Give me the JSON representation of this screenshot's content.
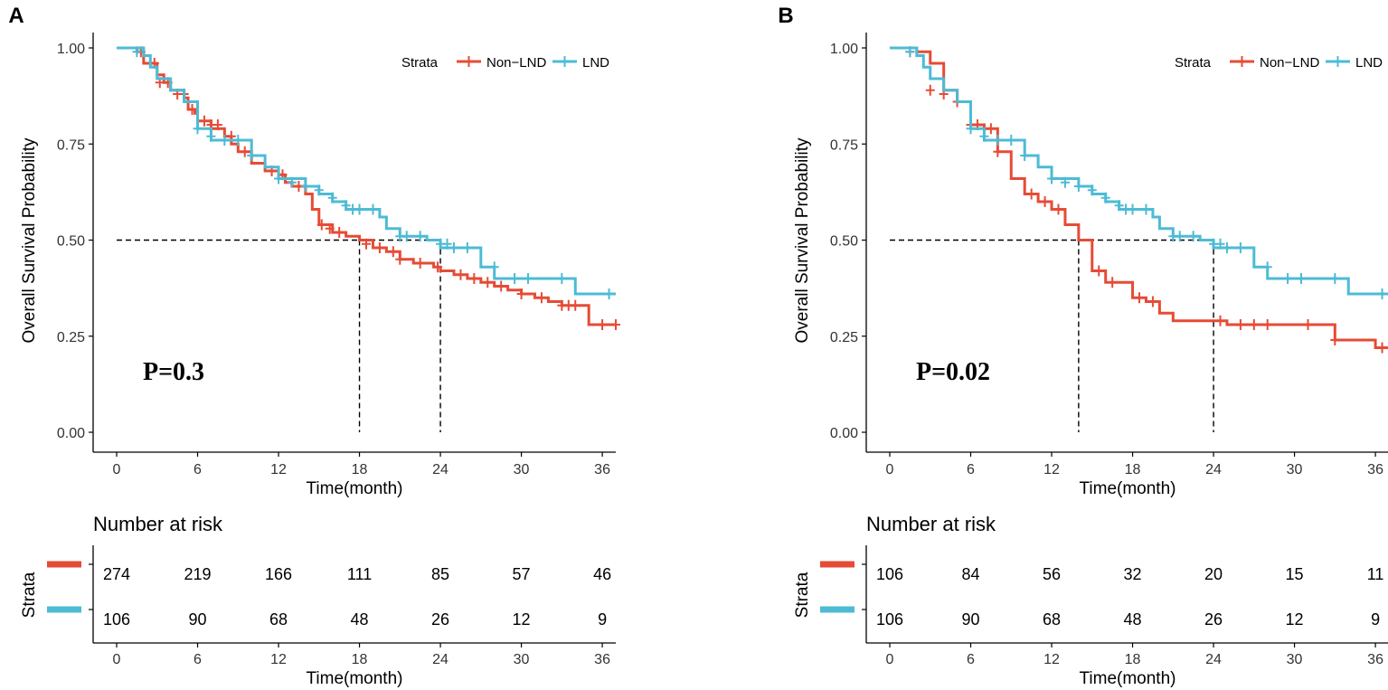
{
  "chart_data": [
    {
      "type": "line",
      "subtype": "kaplan-meier",
      "panel_label": "A",
      "ylabel": "Overall Survival Probability",
      "xlabel": "Time(month)",
      "xlim": [
        0,
        37
      ],
      "ylim": [
        0,
        1
      ],
      "xticks": [
        0,
        6,
        12,
        18,
        24,
        30,
        36
      ],
      "xtick_labels": [
        "0",
        "6",
        "12",
        "18",
        "24",
        "30",
        "36"
      ],
      "yticks": [
        0,
        0.25,
        0.5,
        0.75,
        1.0
      ],
      "ytick_labels": [
        "0.00",
        "0.25",
        "0.50",
        "0.75",
        "1.00"
      ],
      "legend": {
        "title": "Strata",
        "position": "top-right",
        "entries": [
          "Non−LND",
          "LND"
        ]
      },
      "p_value": "P=0.3",
      "median_line": {
        "y": 0.5,
        "x_ends": [
          18,
          24
        ]
      },
      "series": [
        {
          "name": "Non-LND",
          "color": "#E64B35",
          "steps": [
            [
              0,
              1.0
            ],
            [
              1.5,
              0.99
            ],
            [
              2.0,
              0.96
            ],
            [
              3.0,
              0.93
            ],
            [
              3.5,
              0.91
            ],
            [
              4.0,
              0.89
            ],
            [
              5.0,
              0.87
            ],
            [
              5.3,
              0.84
            ],
            [
              5.8,
              0.83
            ],
            [
              6.0,
              0.81
            ],
            [
              7.0,
              0.79
            ],
            [
              8.0,
              0.77
            ],
            [
              8.5,
              0.75
            ],
            [
              9.0,
              0.73
            ],
            [
              10.0,
              0.7
            ],
            [
              11.0,
              0.68
            ],
            [
              12.0,
              0.67
            ],
            [
              12.5,
              0.65
            ],
            [
              13.0,
              0.64
            ],
            [
              14.0,
              0.62
            ],
            [
              14.5,
              0.58
            ],
            [
              15.0,
              0.54
            ],
            [
              16.0,
              0.52
            ],
            [
              17.0,
              0.51
            ],
            [
              18.0,
              0.5
            ],
            [
              19.0,
              0.48
            ],
            [
              20.0,
              0.47
            ],
            [
              21.0,
              0.45
            ],
            [
              22.0,
              0.44
            ],
            [
              23.5,
              0.43
            ],
            [
              24.0,
              0.42
            ],
            [
              25.0,
              0.41
            ],
            [
              26.0,
              0.4
            ],
            [
              27.0,
              0.39
            ],
            [
              28.0,
              0.38
            ],
            [
              29.0,
              0.37
            ],
            [
              30.0,
              0.36
            ],
            [
              31.0,
              0.35
            ],
            [
              32.0,
              0.34
            ],
            [
              33.0,
              0.33
            ],
            [
              35.0,
              0.28
            ],
            [
              37.0,
              0.28
            ]
          ],
          "censors": [
            [
              1.8,
              0.99
            ],
            [
              2.8,
              0.96
            ],
            [
              3.2,
              0.91
            ],
            [
              3.8,
              0.91
            ],
            [
              4.5,
              0.88
            ],
            [
              5.0,
              0.88
            ],
            [
              5.6,
              0.84
            ],
            [
              6.5,
              0.81
            ],
            [
              7.0,
              0.8
            ],
            [
              7.5,
              0.8
            ],
            [
              8.5,
              0.77
            ],
            [
              9.5,
              0.73
            ],
            [
              11.5,
              0.68
            ],
            [
              12.3,
              0.67
            ],
            [
              13.5,
              0.64
            ],
            [
              15.2,
              0.54
            ],
            [
              15.8,
              0.53
            ],
            [
              16.5,
              0.52
            ],
            [
              18.5,
              0.49
            ],
            [
              19.5,
              0.48
            ],
            [
              20.5,
              0.47
            ],
            [
              21.0,
              0.45
            ],
            [
              22.5,
              0.44
            ],
            [
              23.8,
              0.43
            ],
            [
              25.5,
              0.41
            ],
            [
              26.5,
              0.4
            ],
            [
              27.5,
              0.39
            ],
            [
              28.5,
              0.38
            ],
            [
              30.0,
              0.36
            ],
            [
              31.5,
              0.35
            ],
            [
              33.0,
              0.33
            ],
            [
              33.5,
              0.33
            ],
            [
              34.0,
              0.33
            ],
            [
              36.0,
              0.28
            ],
            [
              37.0,
              0.28
            ]
          ]
        },
        {
          "name": "LND",
          "color": "#4DBBD5",
          "steps": [
            [
              0,
              1.0
            ],
            [
              2.0,
              0.98
            ],
            [
              2.5,
              0.95
            ],
            [
              3.0,
              0.92
            ],
            [
              4.0,
              0.89
            ],
            [
              5.0,
              0.86
            ],
            [
              6.0,
              0.79
            ],
            [
              7.0,
              0.76
            ],
            [
              9.0,
              0.76
            ],
            [
              10.0,
              0.72
            ],
            [
              11.0,
              0.69
            ],
            [
              12.0,
              0.66
            ],
            [
              14.0,
              0.64
            ],
            [
              15.0,
              0.62
            ],
            [
              16.0,
              0.6
            ],
            [
              17.0,
              0.58
            ],
            [
              19.5,
              0.56
            ],
            [
              20.0,
              0.53
            ],
            [
              21.0,
              0.51
            ],
            [
              23.0,
              0.5
            ],
            [
              24.0,
              0.48
            ],
            [
              27.0,
              0.43
            ],
            [
              28.0,
              0.4
            ],
            [
              31.0,
              0.4
            ],
            [
              34.0,
              0.36
            ],
            [
              37.0,
              0.36
            ]
          ],
          "censors": [
            [
              1.5,
              0.99
            ],
            [
              6.0,
              0.79
            ],
            [
              7.0,
              0.77
            ],
            [
              8.0,
              0.76
            ],
            [
              9.0,
              0.76
            ],
            [
              10.0,
              0.72
            ],
            [
              12.0,
              0.66
            ],
            [
              13.0,
              0.65
            ],
            [
              14.0,
              0.64
            ],
            [
              15.0,
              0.63
            ],
            [
              16.0,
              0.61
            ],
            [
              17.0,
              0.59
            ],
            [
              17.5,
              0.58
            ],
            [
              18.0,
              0.58
            ],
            [
              19.0,
              0.58
            ],
            [
              21.0,
              0.51
            ],
            [
              21.5,
              0.51
            ],
            [
              22.5,
              0.51
            ],
            [
              24.0,
              0.49
            ],
            [
              24.5,
              0.49
            ],
            [
              25.0,
              0.48
            ],
            [
              26.0,
              0.48
            ],
            [
              28.0,
              0.43
            ],
            [
              29.5,
              0.4
            ],
            [
              30.5,
              0.4
            ],
            [
              33.0,
              0.4
            ],
            [
              36.5,
              0.36
            ]
          ]
        }
      ],
      "risk_table": {
        "title": "Number at risk",
        "ylabel": "Strata",
        "xlabel": "Time(month)",
        "times": [
          0,
          6,
          12,
          18,
          24,
          30,
          36
        ],
        "rows": [
          {
            "color": "#E64B35",
            "values": [
              "274",
              "219",
              "166",
              "111",
              "85",
              "57",
              "46"
            ]
          },
          {
            "color": "#4DBBD5",
            "values": [
              "106",
              "90",
              "68",
              "48",
              "26",
              "12",
              "9"
            ]
          }
        ]
      }
    },
    {
      "type": "line",
      "subtype": "kaplan-meier",
      "panel_label": "B",
      "ylabel": "Overall Survival Probability",
      "xlabel": "Time(month)",
      "xlim": [
        0,
        37
      ],
      "ylim": [
        0,
        1
      ],
      "xticks": [
        0,
        6,
        12,
        18,
        24,
        30,
        36
      ],
      "xtick_labels": [
        "0",
        "6",
        "12",
        "18",
        "24",
        "30",
        "36"
      ],
      "yticks": [
        0,
        0.25,
        0.5,
        0.75,
        1.0
      ],
      "ytick_labels": [
        "0.00",
        "0.25",
        "0.50",
        "0.75",
        "1.00"
      ],
      "legend": {
        "title": "Strata",
        "position": "top-right",
        "entries": [
          "Non−LND",
          "LND"
        ]
      },
      "p_value": "P=0.02",
      "median_line": {
        "y": 0.5,
        "x_ends": [
          14,
          24
        ]
      },
      "series": [
        {
          "name": "Non-LND",
          "color": "#E64B35",
          "steps": [
            [
              0,
              1.0
            ],
            [
              2.0,
              0.99
            ],
            [
              3.0,
              0.96
            ],
            [
              4.0,
              0.89
            ],
            [
              5.0,
              0.86
            ],
            [
              6.0,
              0.8
            ],
            [
              7.0,
              0.79
            ],
            [
              8.0,
              0.73
            ],
            [
              9.0,
              0.66
            ],
            [
              10.0,
              0.62
            ],
            [
              11.0,
              0.6
            ],
            [
              12.0,
              0.58
            ],
            [
              13.0,
              0.54
            ],
            [
              14.0,
              0.5
            ],
            [
              15.0,
              0.42
            ],
            [
              16.0,
              0.39
            ],
            [
              18.0,
              0.35
            ],
            [
              19.0,
              0.34
            ],
            [
              20.0,
              0.31
            ],
            [
              21.0,
              0.29
            ],
            [
              24.0,
              0.29
            ],
            [
              25.0,
              0.28
            ],
            [
              27.0,
              0.28
            ],
            [
              30.0,
              0.28
            ],
            [
              33.0,
              0.24
            ],
            [
              36.0,
              0.22
            ],
            [
              37.0,
              0.22
            ]
          ],
          "censors": [
            [
              1.5,
              0.99
            ],
            [
              3.0,
              0.89
            ],
            [
              4.0,
              0.88
            ],
            [
              5.0,
              0.86
            ],
            [
              6.0,
              0.8
            ],
            [
              6.5,
              0.8
            ],
            [
              7.5,
              0.79
            ],
            [
              8.0,
              0.73
            ],
            [
              10.5,
              0.62
            ],
            [
              11.5,
              0.6
            ],
            [
              12.5,
              0.58
            ],
            [
              15.5,
              0.42
            ],
            [
              16.5,
              0.39
            ],
            [
              18.5,
              0.35
            ],
            [
              19.5,
              0.34
            ],
            [
              24.5,
              0.29
            ],
            [
              26.0,
              0.28
            ],
            [
              27.0,
              0.28
            ],
            [
              28.0,
              0.28
            ],
            [
              31.0,
              0.28
            ],
            [
              33.0,
              0.24
            ],
            [
              36.5,
              0.22
            ]
          ]
        },
        {
          "name": "LND",
          "color": "#4DBBD5",
          "steps": [
            [
              0,
              1.0
            ],
            [
              2.0,
              0.98
            ],
            [
              2.5,
              0.95
            ],
            [
              3.0,
              0.92
            ],
            [
              4.0,
              0.89
            ],
            [
              5.0,
              0.86
            ],
            [
              6.0,
              0.79
            ],
            [
              7.0,
              0.76
            ],
            [
              9.0,
              0.76
            ],
            [
              10.0,
              0.72
            ],
            [
              11.0,
              0.69
            ],
            [
              12.0,
              0.66
            ],
            [
              14.0,
              0.64
            ],
            [
              15.0,
              0.62
            ],
            [
              16.0,
              0.6
            ],
            [
              17.0,
              0.58
            ],
            [
              19.5,
              0.56
            ],
            [
              20.0,
              0.53
            ],
            [
              21.0,
              0.51
            ],
            [
              23.0,
              0.5
            ],
            [
              24.0,
              0.48
            ],
            [
              27.0,
              0.43
            ],
            [
              28.0,
              0.4
            ],
            [
              31.0,
              0.4
            ],
            [
              34.0,
              0.36
            ],
            [
              37.0,
              0.36
            ]
          ],
          "censors": [
            [
              1.5,
              0.99
            ],
            [
              6.0,
              0.79
            ],
            [
              7.0,
              0.77
            ],
            [
              8.0,
              0.76
            ],
            [
              9.0,
              0.76
            ],
            [
              10.0,
              0.72
            ],
            [
              12.0,
              0.66
            ],
            [
              13.0,
              0.65
            ],
            [
              14.0,
              0.64
            ],
            [
              15.0,
              0.63
            ],
            [
              16.0,
              0.61
            ],
            [
              17.0,
              0.59
            ],
            [
              17.5,
              0.58
            ],
            [
              18.0,
              0.58
            ],
            [
              19.0,
              0.58
            ],
            [
              21.0,
              0.51
            ],
            [
              21.5,
              0.51
            ],
            [
              22.5,
              0.51
            ],
            [
              24.0,
              0.49
            ],
            [
              24.5,
              0.49
            ],
            [
              25.0,
              0.48
            ],
            [
              26.0,
              0.48
            ],
            [
              28.0,
              0.43
            ],
            [
              29.5,
              0.4
            ],
            [
              30.5,
              0.4
            ],
            [
              33.0,
              0.4
            ],
            [
              36.5,
              0.36
            ]
          ]
        }
      ],
      "risk_table": {
        "title": "Number at risk",
        "ylabel": "Strata",
        "xlabel": "Time(month)",
        "times": [
          0,
          6,
          12,
          18,
          24,
          30,
          36
        ],
        "rows": [
          {
            "color": "#E64B35",
            "values": [
              "106",
              "84",
              "56",
              "32",
              "20",
              "15",
              "11"
            ]
          },
          {
            "color": "#4DBBD5",
            "values": [
              "106",
              "90",
              "68",
              "48",
              "26",
              "12",
              "9"
            ]
          }
        ]
      }
    }
  ]
}
